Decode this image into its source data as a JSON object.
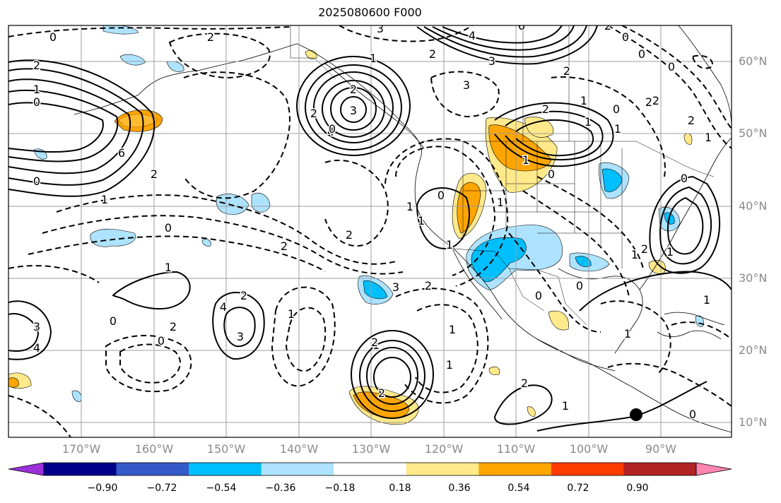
{
  "title": "2025080600 F000",
  "lat_labels": [
    "60°N",
    "50°N",
    "40°N",
    "30°N",
    "20°N",
    "10°N"
  ],
  "lon_labels": [
    "170°W",
    "160°W",
    "150°W",
    "140°W",
    "130°W",
    "120°W",
    "110°W",
    "100°W",
    "90°W"
  ],
  "colorbar": {
    "ticks": [
      "−0.90",
      "−0.72",
      "−0.54",
      "−0.36",
      "−0.18",
      "0.18",
      "0.36",
      "0.54",
      "0.72",
      "0.90"
    ],
    "colors": [
      "#9b30d9",
      "#00008b",
      "#3559c9",
      "#00bfff",
      "#aee3ff",
      "#ffffff",
      "#ffe98a",
      "#ffa500",
      "#ff3c00",
      "#b22222",
      "#ff85b0"
    ]
  },
  "contour_labels": [
    "0",
    "2",
    "1",
    "0",
    "2",
    "3",
    "6",
    "4",
    "2",
    "3",
    "2",
    "0",
    "1",
    "2",
    "3",
    "4",
    "6",
    "0",
    "1",
    "2",
    "3",
    "4",
    "1",
    "2",
    "0",
    "3",
    "4",
    "2",
    "1",
    "2",
    "1",
    "2",
    "2",
    "1",
    "3",
    "0",
    "1",
    "1",
    "2",
    "1",
    "0",
    "2",
    "0",
    "0",
    "2",
    "1",
    "0",
    "2",
    "1",
    "0",
    "2",
    "0",
    "2",
    "1",
    "0",
    "1",
    "2",
    "1",
    "1",
    "1",
    "0",
    "2",
    "1",
    "0",
    "1",
    "1",
    "1",
    "3",
    "2",
    "0",
    "2",
    "0",
    "1"
  ],
  "marker": "station-dot"
}
